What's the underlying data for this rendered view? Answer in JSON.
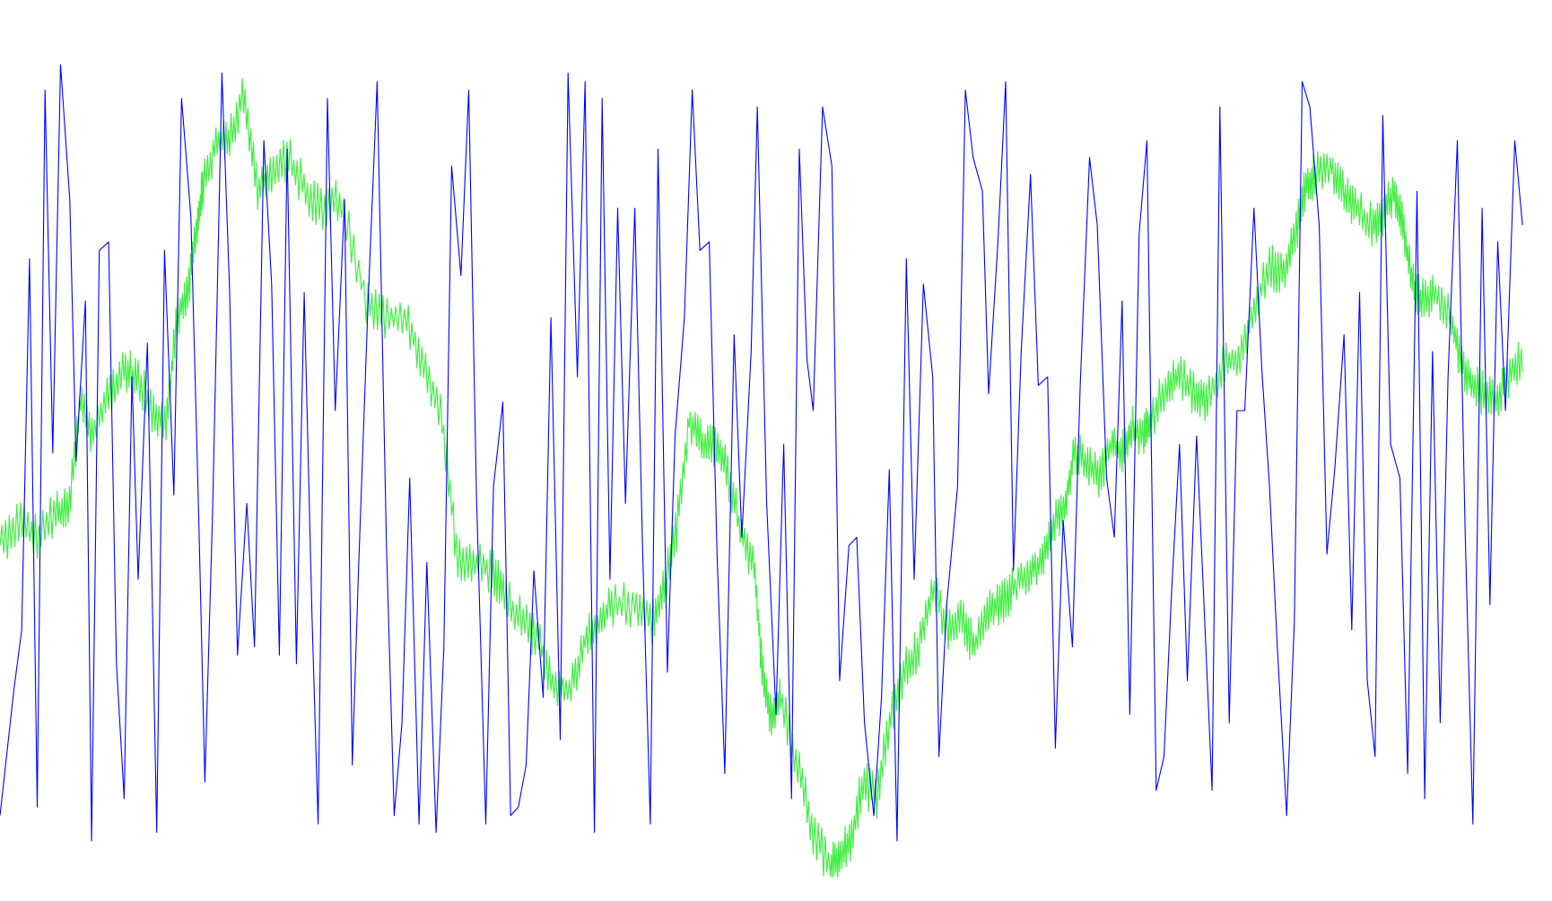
{
  "chart_data": {
    "type": "line",
    "title": "",
    "xlabel": "",
    "ylabel": "",
    "grid": false,
    "legend": "none",
    "xlim": [
      0,
      1000
    ],
    "ylim": [
      0,
      100
    ],
    "series": [
      {
        "color": "#0000ff",
        "points": [
          [
            0,
            8
          ],
          [
            9,
            23
          ],
          [
            14,
            30
          ],
          [
            19,
            74
          ],
          [
            24,
            9
          ],
          [
            29,
            94
          ],
          [
            34,
            51
          ],
          [
            39,
            97
          ],
          [
            45,
            81
          ],
          [
            49,
            50
          ],
          [
            55,
            69
          ],
          [
            59,
            5
          ],
          [
            64,
            75
          ],
          [
            70,
            76
          ],
          [
            75,
            26
          ],
          [
            80,
            10
          ],
          [
            85,
            60
          ],
          [
            89,
            36
          ],
          [
            95,
            64
          ],
          [
            101,
            6
          ],
          [
            106,
            75
          ],
          [
            112,
            46
          ],
          [
            117,
            93
          ],
          [
            123,
            79
          ],
          [
            128,
            44
          ],
          [
            132,
            12
          ],
          [
            137,
            44
          ],
          [
            143,
            96
          ],
          [
            148,
            70
          ],
          [
            153,
            27
          ],
          [
            159,
            45
          ],
          [
            164,
            28
          ],
          [
            170,
            88
          ],
          [
            175,
            71
          ],
          [
            180,
            27
          ],
          [
            185,
            87
          ],
          [
            191,
            26
          ],
          [
            196,
            70
          ],
          [
            201,
            32
          ],
          [
            205,
            7
          ],
          [
            211,
            93
          ],
          [
            216,
            56
          ],
          [
            222,
            81
          ],
          [
            227,
            14
          ],
          [
            231,
            37
          ],
          [
            237,
            68
          ],
          [
            243,
            95
          ],
          [
            249,
            40
          ],
          [
            254,
            8
          ],
          [
            259,
            19
          ],
          [
            264,
            48
          ],
          [
            270,
            7
          ],
          [
            275,
            38
          ],
          [
            281,
            6
          ],
          [
            286,
            28
          ],
          [
            291,
            85
          ],
          [
            297,
            72
          ],
          [
            302,
            94
          ],
          [
            307,
            46
          ],
          [
            313,
            7
          ],
          [
            318,
            47
          ],
          [
            324,
            57
          ],
          [
            329,
            8
          ],
          [
            334,
            9
          ],
          [
            339,
            14
          ],
          [
            344,
            37
          ],
          [
            350,
            22
          ],
          [
            355,
            67
          ],
          [
            361,
            17
          ],
          [
            366,
            96
          ],
          [
            372,
            60
          ],
          [
            377,
            95
          ],
          [
            383,
            6
          ],
          [
            388,
            93
          ],
          [
            393,
            36
          ],
          [
            398,
            80
          ],
          [
            403,
            45
          ],
          [
            409,
            80
          ],
          [
            414,
            40
          ],
          [
            419,
            7
          ],
          [
            424,
            87
          ],
          [
            430,
            25
          ],
          [
            435,
            53
          ],
          [
            441,
            67
          ],
          [
            446,
            94
          ],
          [
            451,
            75
          ],
          [
            457,
            76
          ],
          [
            462,
            39
          ],
          [
            467,
            13
          ],
          [
            473,
            65
          ],
          [
            478,
            41
          ],
          [
            484,
            63
          ],
          [
            488,
            92
          ],
          [
            494,
            45
          ],
          [
            500,
            20
          ],
          [
            505,
            52
          ],
          [
            510,
            10
          ],
          [
            515,
            87
          ],
          [
            520,
            62
          ],
          [
            524,
            56
          ],
          [
            530,
            92
          ],
          [
            536,
            85
          ],
          [
            541,
            24
          ],
          [
            547,
            40
          ],
          [
            552,
            41
          ],
          [
            557,
            19
          ],
          [
            563,
            8
          ],
          [
            568,
            22
          ],
          [
            573,
            49
          ],
          [
            578,
            5
          ],
          [
            584,
            74
          ],
          [
            589,
            36
          ],
          [
            595,
            71
          ],
          [
            601,
            60
          ],
          [
            605,
            15
          ],
          [
            610,
            33
          ],
          [
            617,
            47
          ],
          [
            622,
            94
          ],
          [
            627,
            86
          ],
          [
            633,
            82
          ],
          [
            637,
            58
          ],
          [
            643,
            76
          ],
          [
            648,
            95
          ],
          [
            653,
            37
          ],
          [
            658,
            63
          ],
          [
            664,
            84
          ],
          [
            669,
            59
          ],
          [
            675,
            60
          ],
          [
            680,
            16
          ],
          [
            685,
            43
          ],
          [
            691,
            28
          ],
          [
            696,
            59
          ],
          [
            702,
            86
          ],
          [
            707,
            78
          ],
          [
            713,
            48
          ],
          [
            718,
            41
          ],
          [
            723,
            69
          ],
          [
            728,
            20
          ],
          [
            734,
            77
          ],
          [
            739,
            88
          ],
          [
            745,
            11
          ],
          [
            750,
            15
          ],
          [
            755,
            35
          ],
          [
            760,
            52
          ],
          [
            765,
            24
          ],
          [
            771,
            53
          ],
          [
            776,
            32
          ],
          [
            781,
            11
          ],
          [
            786,
            92
          ],
          [
            792,
            19
          ],
          [
            797,
            56
          ],
          [
            802,
            56
          ],
          [
            808,
            80
          ],
          [
            813,
            61
          ],
          [
            818,
            47
          ],
          [
            823,
            28
          ],
          [
            829,
            8
          ],
          [
            834,
            31
          ],
          [
            839,
            95
          ],
          [
            844,
            92
          ],
          [
            850,
            78
          ],
          [
            855,
            39
          ],
          [
            860,
            49
          ],
          [
            866,
            65
          ],
          [
            871,
            30
          ],
          [
            876,
            70
          ],
          [
            881,
            24
          ],
          [
            886,
            15
          ],
          [
            891,
            91
          ],
          [
            896,
            52
          ],
          [
            902,
            48
          ],
          [
            907,
            13
          ],
          [
            913,
            82
          ],
          [
            918,
            10
          ],
          [
            923,
            63
          ],
          [
            928,
            19
          ],
          [
            933,
            60
          ],
          [
            939,
            88
          ],
          [
            944,
            42
          ],
          [
            949,
            7
          ],
          [
            955,
            80
          ],
          [
            960,
            33
          ],
          [
            965,
            76
          ],
          [
            970,
            56
          ],
          [
            976,
            88
          ],
          [
            981,
            78
          ]
        ]
      },
      {
        "color": "#44ee44",
        "points": [
          [
            0,
            40
          ],
          [
            12,
            43
          ],
          [
            24,
            41
          ],
          [
            36,
            44
          ],
          [
            44,
            44
          ],
          [
            52,
            57
          ],
          [
            60,
            53
          ],
          [
            70,
            58
          ],
          [
            80,
            61
          ],
          [
            88,
            60
          ],
          [
            98,
            56
          ],
          [
            107,
            55
          ],
          [
            114,
            67
          ],
          [
            121,
            70
          ],
          [
            127,
            78
          ],
          [
            131,
            83
          ],
          [
            140,
            88
          ],
          [
            148,
            88
          ],
          [
            157,
            94
          ],
          [
            166,
            82
          ],
          [
            175,
            84
          ],
          [
            186,
            86
          ],
          [
            197,
            82
          ],
          [
            208,
            80
          ],
          [
            220,
            81
          ],
          [
            236,
            69
          ],
          [
            248,
            67
          ],
          [
            262,
            67
          ],
          [
            273,
            61
          ],
          [
            285,
            55
          ],
          [
            295,
            38
          ],
          [
            306,
            38
          ],
          [
            317,
            37
          ],
          [
            325,
            34
          ],
          [
            336,
            31
          ],
          [
            347,
            29
          ],
          [
            357,
            23
          ],
          [
            368,
            23
          ],
          [
            377,
            29
          ],
          [
            386,
            31
          ],
          [
            395,
            33
          ],
          [
            409,
            33
          ],
          [
            420,
            31
          ],
          [
            428,
            35
          ],
          [
            436,
            42
          ],
          [
            444,
            55
          ],
          [
            452,
            52
          ],
          [
            460,
            52
          ],
          [
            468,
            49
          ],
          [
            477,
            42
          ],
          [
            486,
            37
          ],
          [
            491,
            26
          ],
          [
            497,
            19
          ],
          [
            503,
            22
          ],
          [
            514,
            14
          ],
          [
            524,
            6
          ],
          [
            535,
            2
          ],
          [
            541,
            3
          ],
          [
            548,
            5
          ],
          [
            556,
            12
          ],
          [
            565,
            10
          ],
          [
            574,
            20
          ],
          [
            583,
            25
          ],
          [
            592,
            28
          ],
          [
            601,
            35
          ],
          [
            611,
            30
          ],
          [
            620,
            31
          ],
          [
            628,
            28
          ],
          [
            637,
            32
          ],
          [
            645,
            33
          ],
          [
            653,
            35
          ],
          [
            663,
            37
          ],
          [
            671,
            38
          ],
          [
            678,
            42
          ],
          [
            686,
            45
          ],
          [
            692,
            51
          ],
          [
            700,
            50
          ],
          [
            708,
            48
          ],
          [
            716,
            52
          ],
          [
            723,
            51
          ],
          [
            729,
            54
          ],
          [
            737,
            53
          ],
          [
            742,
            55
          ],
          [
            752,
            59
          ],
          [
            760,
            60
          ],
          [
            770,
            58
          ],
          [
            778,
            57
          ],
          [
            789,
            62
          ],
          [
            799,
            62
          ],
          [
            809,
            69
          ],
          [
            819,
            73
          ],
          [
            828,
            72
          ],
          [
            836,
            78
          ],
          [
            842,
            83
          ],
          [
            848,
            84
          ],
          [
            858,
            85
          ],
          [
            866,
            82
          ],
          [
            874,
            80
          ],
          [
            884,
            78
          ],
          [
            891,
            79
          ],
          [
            898,
            82
          ],
          [
            904,
            78
          ],
          [
            910,
            71
          ],
          [
            916,
            69
          ],
          [
            924,
            70
          ],
          [
            934,
            68
          ],
          [
            941,
            62
          ],
          [
            948,
            59
          ],
          [
            956,
            58
          ],
          [
            964,
            57
          ],
          [
            972,
            60
          ],
          [
            981,
            62
          ]
        ]
      }
    ]
  }
}
